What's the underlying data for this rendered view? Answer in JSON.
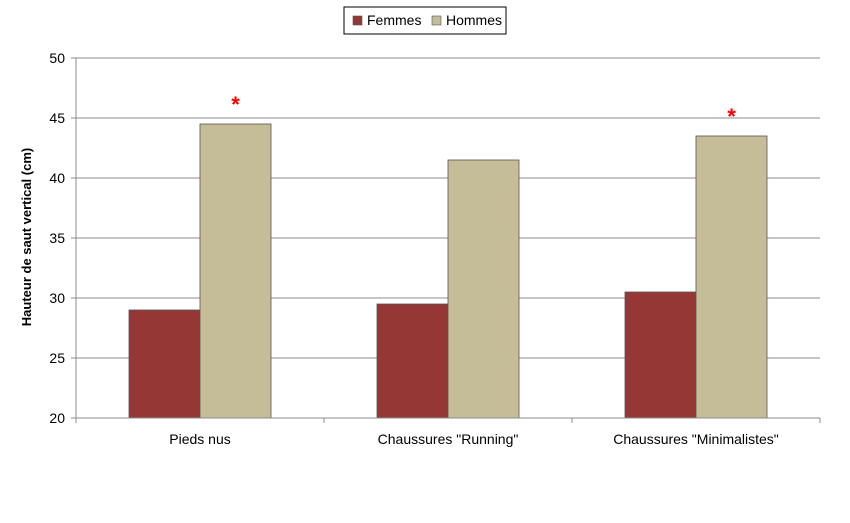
{
  "chart_data": {
    "type": "bar",
    "categories": [
      "Pieds nus",
      "Chaussures \"Running\"",
      "Chaussures \"Minimalistes\""
    ],
    "series": [
      {
        "name": "Femmes",
        "values": [
          29.0,
          29.5,
          30.5
        ],
        "color": "#953735"
      },
      {
        "name": "Hommes",
        "values": [
          44.5,
          41.5,
          43.5
        ],
        "color": "#c4bd97"
      }
    ],
    "ylabel": "Hauteur de saut vertical (cm)",
    "xlabel": "",
    "ylim": [
      20,
      50
    ],
    "yticks": [
      20,
      25,
      30,
      35,
      40,
      45,
      50
    ],
    "grid": true,
    "legend_position": "top-center",
    "significance": {
      "symbol": "*",
      "color": "#ff0000",
      "marked": [
        {
          "series": "Hommes",
          "category_index": 0
        },
        {
          "series": "Hommes",
          "category_index": 2
        }
      ]
    }
  }
}
